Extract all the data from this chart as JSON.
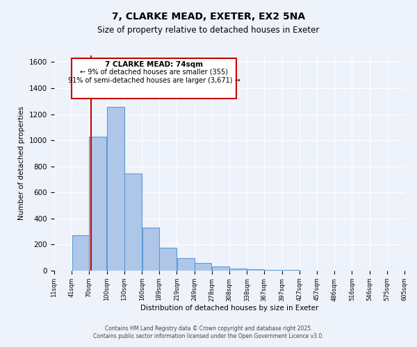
{
  "title": "7, CLARKE MEAD, EXETER, EX2 5NA",
  "subtitle": "Size of property relative to detached houses in Exeter",
  "xlabel": "Distribution of detached houses by size in Exeter",
  "ylabel": "Number of detached properties",
  "property_size": 74,
  "annotation_title": "7 CLARKE MEAD: 74sqm",
  "annotation_line1": "← 9% of detached houses are smaller (355)",
  "annotation_line2": "91% of semi-detached houses are larger (3,671) →",
  "bar_edges": [
    11,
    41,
    70,
    100,
    130,
    160,
    189,
    219,
    249,
    278,
    308,
    338,
    367,
    397,
    427,
    457,
    486,
    516,
    546,
    575,
    605
  ],
  "bar_heights": [
    0,
    270,
    1025,
    1255,
    745,
    330,
    175,
    95,
    60,
    30,
    15,
    8,
    5,
    3,
    2,
    1,
    1,
    0,
    0,
    0
  ],
  "bar_color": "#aec6e8",
  "bar_edge_color": "#5b9bd5",
  "annotation_box_color": "#cc0000",
  "marker_line_color": "#cc0000",
  "background_color": "#eef2fa",
  "plot_bg_color": "#eef2fa",
  "ylim": [
    0,
    1650
  ],
  "yticks": [
    0,
    200,
    400,
    600,
    800,
    1000,
    1200,
    1400,
    1600
  ],
  "footer1": "Contains HM Land Registry data © Crown copyright and database right 2025.",
  "footer2": "Contains public sector information licensed under the Open Government Licence v3.0."
}
